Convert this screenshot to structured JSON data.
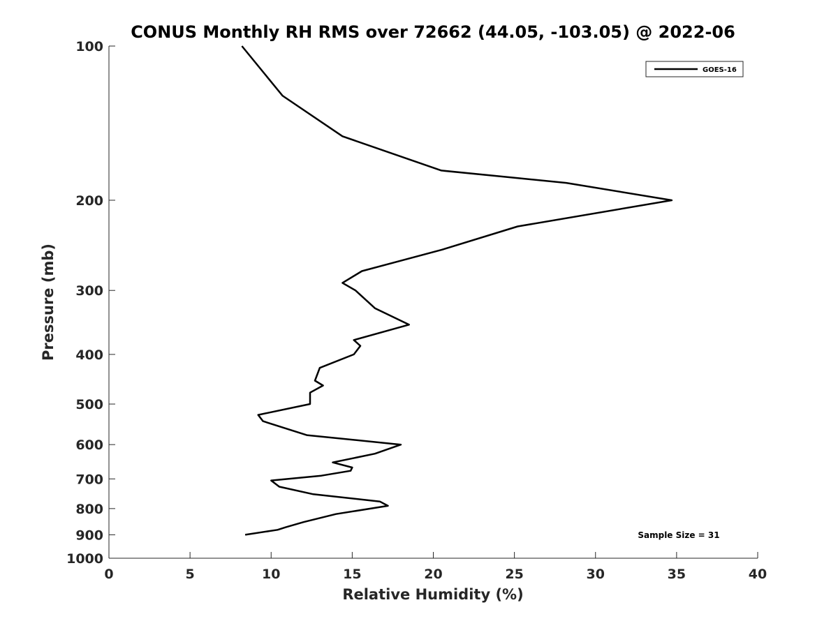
{
  "chart_data": {
    "type": "line",
    "title": "CONUS Monthly RH RMS over 72662 (44.05, -103.05) @ 2022-06",
    "xlabel": "Relative Humidity (%)",
    "ylabel": "Pressure (mb)",
    "xlim": [
      0,
      40
    ],
    "ylim": [
      1000,
      100
    ],
    "y_scale": "log",
    "y_reversed": true,
    "x_ticks": [
      0,
      5,
      10,
      15,
      20,
      25,
      30,
      35,
      40
    ],
    "y_ticks": [
      100,
      200,
      300,
      400,
      500,
      600,
      700,
      800,
      900,
      1000
    ],
    "grid": false,
    "legend": {
      "position": "top-right"
    },
    "series": [
      {
        "name": "GOES-16",
        "color": "#000000",
        "points": [
          [
            8.2,
            100
          ],
          [
            10.7,
            125
          ],
          [
            14.4,
            150
          ],
          [
            20.5,
            175
          ],
          [
            28.2,
            185
          ],
          [
            34.7,
            200
          ],
          [
            25.2,
            225
          ],
          [
            20.5,
            250
          ],
          [
            15.6,
            275
          ],
          [
            14.4,
            290
          ],
          [
            15.2,
            300
          ],
          [
            16.4,
            325
          ],
          [
            18.5,
            350
          ],
          [
            15.1,
            375
          ],
          [
            15.5,
            385
          ],
          [
            15.1,
            400
          ],
          [
            13.0,
            425
          ],
          [
            12.7,
            450
          ],
          [
            13.2,
            460
          ],
          [
            12.4,
            475
          ],
          [
            12.4,
            500
          ],
          [
            9.2,
            525
          ],
          [
            9.5,
            540
          ],
          [
            12.2,
            575
          ],
          [
            18.0,
            600
          ],
          [
            16.4,
            625
          ],
          [
            13.8,
            650
          ],
          [
            15.0,
            665
          ],
          [
            14.9,
            675
          ],
          [
            13.1,
            690
          ],
          [
            10.0,
            705
          ],
          [
            10.5,
            725
          ],
          [
            12.6,
            750
          ],
          [
            16.7,
            775
          ],
          [
            17.2,
            790
          ],
          [
            14.0,
            820
          ],
          [
            12.0,
            850
          ],
          [
            10.9,
            870
          ],
          [
            10.4,
            880
          ],
          [
            8.4,
            900
          ]
        ]
      }
    ],
    "annotation": "Sample Size = 31"
  }
}
